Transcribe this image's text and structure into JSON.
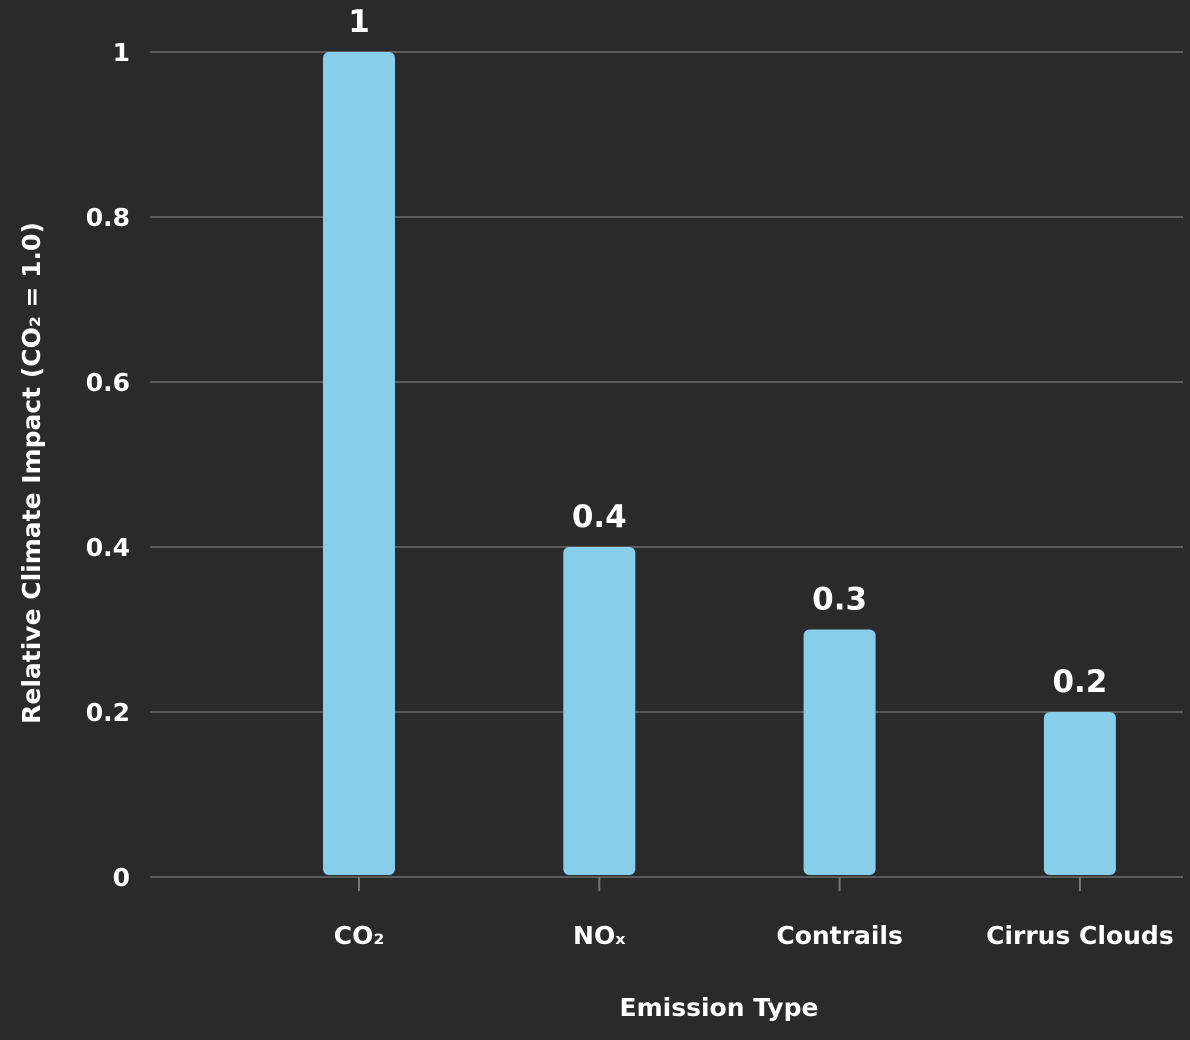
{
  "chart_data": {
    "type": "bar",
    "categories": [
      "CO₂",
      "NOₓ",
      "Contrails",
      "Cirrus Clouds"
    ],
    "values": [
      1,
      0.4,
      0.3,
      0.2
    ],
    "data_labels": [
      "1",
      "0.4",
      "0.3",
      "0.2"
    ],
    "title": "",
    "xlabel": "Emission Type",
    "ylabel": "Relative Climate Impact (CO₂ = 1.0)",
    "ylim": [
      0,
      1
    ],
    "yticks": [
      0,
      0.2,
      0.4,
      0.6,
      0.8,
      1
    ],
    "ytick_labels": [
      "0",
      "0.2",
      "0.4",
      "0.6",
      "0.8",
      "1"
    ],
    "grid": true,
    "legend": "none",
    "colors": {
      "bar": "#87ceeb",
      "background": "#2a2a2a",
      "grid": "#5a5a5a",
      "text": "#ffffff"
    }
  }
}
